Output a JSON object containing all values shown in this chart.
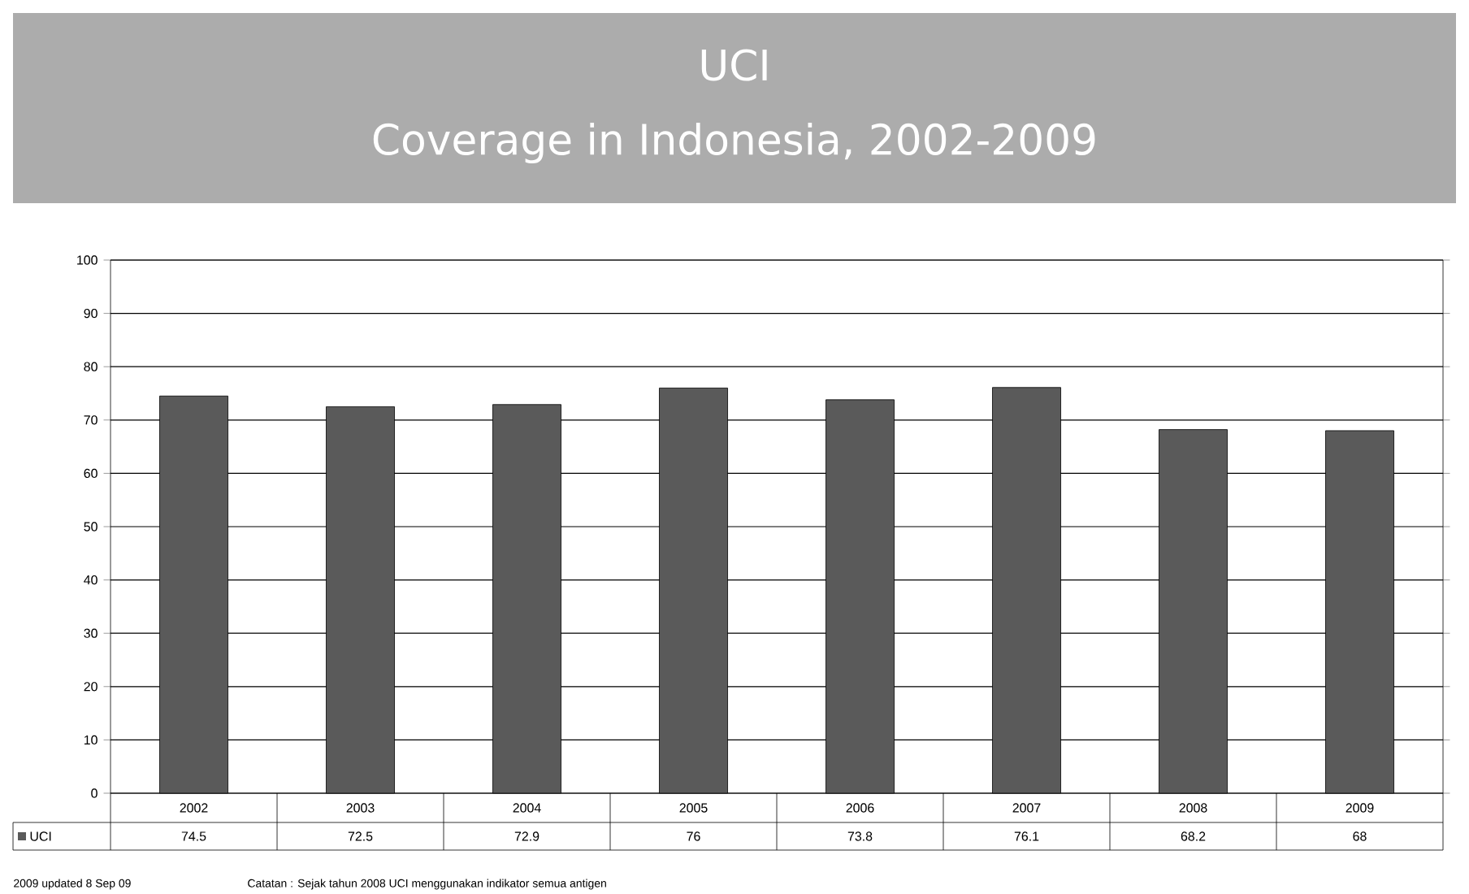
{
  "chart_data": {
    "type": "bar",
    "title": "UCI",
    "subtitle": "Coverage in Indonesia, 2002-2009",
    "categories": [
      "2002",
      "2003",
      "2004",
      "2005",
      "2006",
      "2007",
      "2008",
      "2009"
    ],
    "series": [
      {
        "name": "UCI",
        "color": "#5a5a5a",
        "values": [
          74.5,
          72.5,
          72.9,
          76,
          73.8,
          76.1,
          68.2,
          68
        ]
      }
    ],
    "ylim": [
      0,
      100
    ],
    "yticks": [
      0,
      10,
      20,
      30,
      40,
      50,
      60,
      70,
      80,
      90,
      100
    ],
    "grid": "y",
    "data_labels": true,
    "legend": "bottom left",
    "annotations": [
      "2009 updated 8 Sep 09",
      "Catatan : Sejak tahun 2008 UCI menggunakan indikator semua antigen"
    ]
  }
}
